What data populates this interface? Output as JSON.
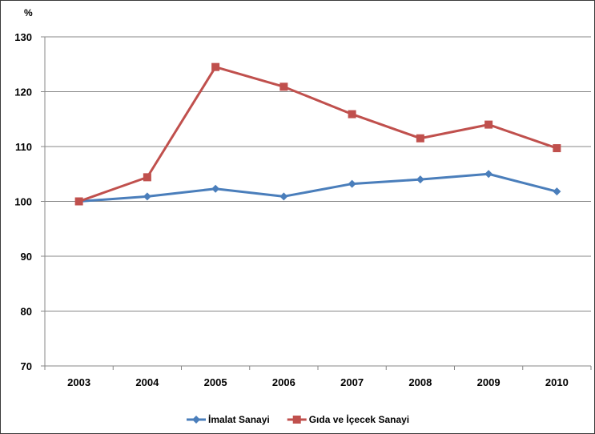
{
  "chart_data": {
    "type": "line",
    "title": "",
    "unit_label": "%",
    "xlabel": "",
    "ylabel": "",
    "ylim": [
      70,
      130
    ],
    "yticks": [
      70,
      80,
      90,
      100,
      110,
      120,
      130
    ],
    "grid": true,
    "legend_position": "bottom",
    "categories": [
      "2003",
      "2004",
      "2005",
      "2006",
      "2007",
      "2008",
      "2009",
      "2010"
    ],
    "series": [
      {
        "name": "İmalat Sanayi",
        "color": "#4a7ebb",
        "marker": "diamond",
        "values": [
          100.0,
          100.9,
          102.3,
          100.9,
          103.2,
          104.0,
          105.0,
          101.8
        ]
      },
      {
        "name": "Gıda ve İçecek Sanayi",
        "color": "#c0504d",
        "marker": "square",
        "values": [
          100.0,
          104.4,
          124.5,
          120.9,
          115.9,
          111.5,
          114.0,
          109.7
        ]
      }
    ]
  }
}
